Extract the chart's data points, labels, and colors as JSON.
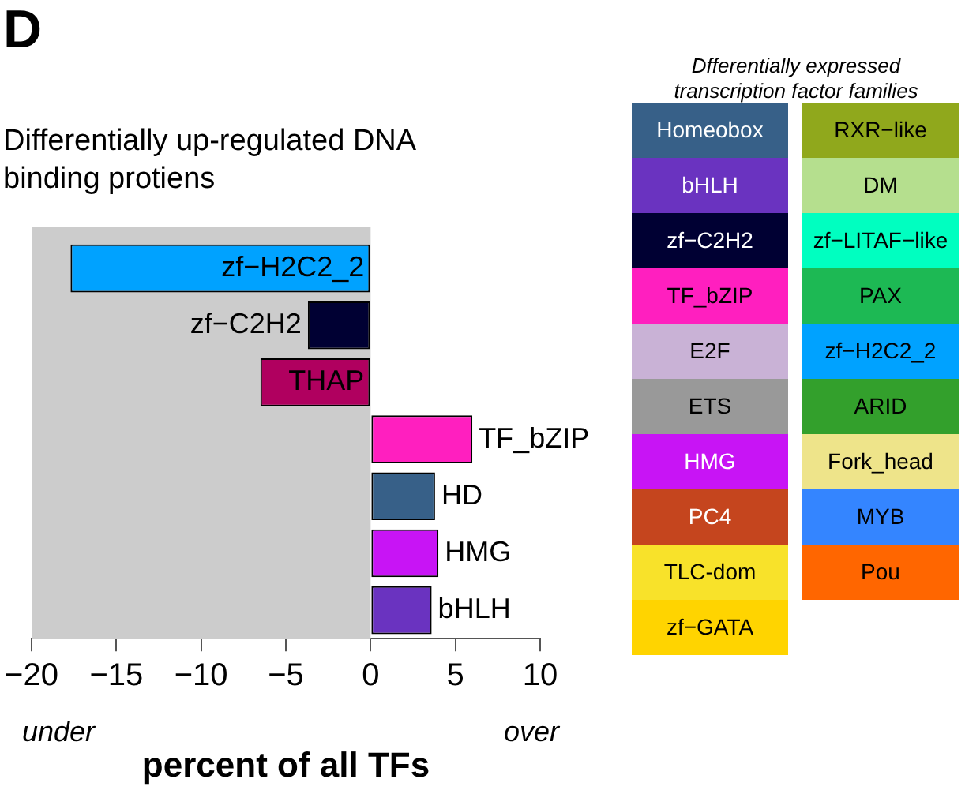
{
  "chart_data": [
    {
      "type": "bar",
      "orientation": "horizontal",
      "title": "Differentially up-regulated DNA binding protiens",
      "xlabel": "percent of all TFs",
      "tick_labels": "x",
      "grid": false,
      "annotations": [
        "D",
        "under",
        "over"
      ],
      "categories": [
        "zf−H2C2_2",
        "zf−C2H2",
        "THAP",
        "TF_bZIP",
        "HD",
        "HMG",
        "bHLH"
      ],
      "values": [
        -17.7,
        -3.7,
        -6.5,
        6.0,
        3.8,
        4.0,
        3.6
      ],
      "colors": [
        "#00a2ff",
        "#000033",
        "#b0005f",
        "#ff1fbf",
        "#376088",
        "#c814f5",
        "#6a33c0"
      ],
      "xlim": [
        -20,
        10
      ],
      "xticks": [
        {
          "value": -20,
          "label": "−20"
        },
        {
          "value": -15,
          "label": "−15"
        },
        {
          "value": -10,
          "label": "−10"
        },
        {
          "value": -5,
          "label": "−5"
        },
        0,
        5,
        10
      ],
      "bands": [
        {
          "axis": "x",
          "from": -20,
          "to": 0,
          "color": "#cccccc"
        }
      ]
    },
    {
      "type": "other",
      "title": "Dfferentially expressed transcription factor families",
      "categories": [
        "Homeobox",
        "bHLH",
        "zf−C2H2",
        "TF_bZIP",
        "E2F",
        "ETS",
        "HMG",
        "PC4",
        "TLC-dom",
        "zf−GATA",
        "RXR−like",
        "DM",
        "zf−LITAF−like",
        "PAX",
        "zf−H2C2_2",
        "ARID",
        "Fork_head",
        "MYB",
        "Pou"
      ],
      "colors": [
        "#376088",
        "#6a33c0",
        "#000033",
        "#ff1fbf",
        "#c9b2d6",
        "#999999",
        "#c814f5",
        "#c5451e",
        "#f8e22a",
        "#ffd400",
        "#90a81c",
        "#b5df8e",
        "#00ffc0",
        "#1db954",
        "#00a2ff",
        "#33a02c",
        "#eee48a",
        "#3485ff",
        "#ff6600"
      ]
    }
  ]
}
